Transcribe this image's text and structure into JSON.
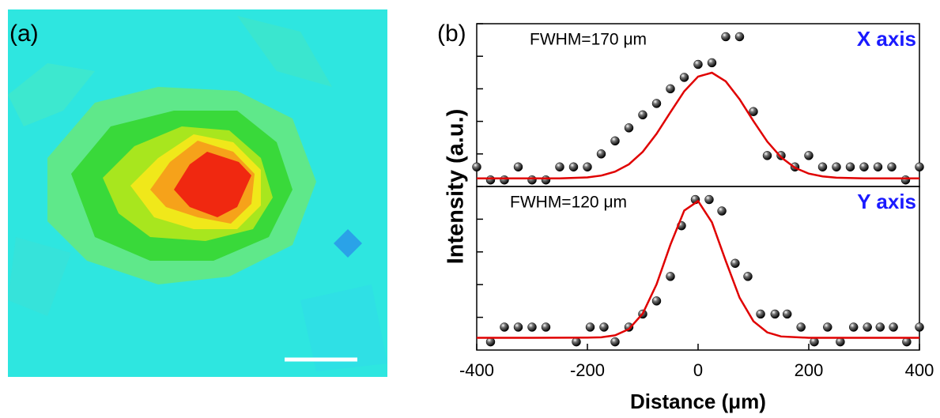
{
  "panel_labels": [
    "(a)",
    "(b)"
  ],
  "xlabel": "Distance (μm)",
  "ylabel": "Intensity (a.u.)",
  "chart_data": [
    {
      "type": "scatter",
      "annotation": "FWHM=170 μm",
      "label": "X axis",
      "label_color": "#1a1aff",
      "xlim": [
        -400,
        400
      ],
      "ylim": [
        0,
        1
      ],
      "yticks": [
        0.2,
        0.4,
        0.6,
        0.8,
        1
      ],
      "series": [
        {
          "mode": "markers",
          "color": "#000000",
          "x": [
            -400,
            -375,
            -350,
            -325,
            -300,
            -275,
            -250,
            -225,
            -200,
            -175,
            -150,
            -125,
            -100,
            -75,
            -50,
            -25,
            0,
            25,
            50,
            75,
            100,
            125,
            150,
            175,
            200,
            225,
            250,
            275,
            300,
            325,
            350,
            375,
            400
          ],
          "values": [
            0.12,
            0.04,
            0.04,
            0.12,
            0.04,
            0.04,
            0.12,
            0.12,
            0.12,
            0.2,
            0.28,
            0.36,
            0.44,
            0.51,
            0.6,
            0.67,
            0.75,
            0.76,
            0.92,
            0.92,
            0.46,
            0.19,
            0.19,
            0.12,
            0.19,
            0.12,
            0.12,
            0.12,
            0.12,
            0.12,
            0.12,
            0.04,
            0.12
          ]
        },
        {
          "mode": "line",
          "color": "#e00000",
          "x": [
            -400,
            -300,
            -250,
            -200,
            -175,
            -150,
            -125,
            -100,
            -75,
            -50,
            -25,
            0,
            25,
            50,
            75,
            100,
            125,
            150,
            175,
            200,
            225,
            250,
            300,
            400
          ],
          "values": [
            0.05,
            0.05,
            0.05,
            0.056,
            0.067,
            0.091,
            0.136,
            0.213,
            0.324,
            0.456,
            0.585,
            0.675,
            0.699,
            0.646,
            0.536,
            0.402,
            0.276,
            0.179,
            0.115,
            0.079,
            0.062,
            0.054,
            0.05,
            0.05
          ]
        }
      ]
    },
    {
      "type": "scatter",
      "annotation": "FWHM=120 μm",
      "label": "Y axis",
      "label_color": "#1a1aff",
      "xlim": [
        -400,
        400
      ],
      "xticks": [
        -400,
        -200,
        0,
        200,
        400
      ],
      "ylim": [
        0,
        1
      ],
      "yticks": [
        0.2,
        0.4,
        0.6,
        0.8,
        1
      ],
      "series": [
        {
          "mode": "markers",
          "color": "#000000",
          "x": [
            -375,
            -350,
            -325,
            -300,
            -275,
            -220,
            -195,
            -170,
            -150,
            -125,
            -100,
            -75,
            -50,
            -30,
            -5,
            20,
            43,
            67,
            90,
            113,
            139,
            161,
            186,
            210,
            234,
            257,
            281,
            306,
            329,
            353,
            377,
            400
          ],
          "values": [
            0.05,
            0.14,
            0.14,
            0.14,
            0.14,
            0.05,
            0.14,
            0.14,
            0.05,
            0.14,
            0.22,
            0.3,
            0.45,
            0.76,
            0.92,
            0.92,
            0.85,
            0.53,
            0.45,
            0.22,
            0.22,
            0.22,
            0.14,
            0.05,
            0.14,
            0.05,
            0.14,
            0.14,
            0.14,
            0.14,
            0.05,
            0.14
          ]
        },
        {
          "mode": "line",
          "color": "#e00000",
          "x": [
            -400,
            -300,
            -200,
            -175,
            -150,
            -125,
            -100,
            -75,
            -50,
            -25,
            0,
            25,
            50,
            75,
            100,
            125,
            150,
            200,
            300,
            400
          ],
          "values": [
            0.075,
            0.075,
            0.076,
            0.078,
            0.09,
            0.128,
            0.223,
            0.402,
            0.644,
            0.853,
            0.911,
            0.781,
            0.545,
            0.32,
            0.176,
            0.108,
            0.083,
            0.075,
            0.075,
            0.075
          ]
        }
      ]
    }
  ]
}
